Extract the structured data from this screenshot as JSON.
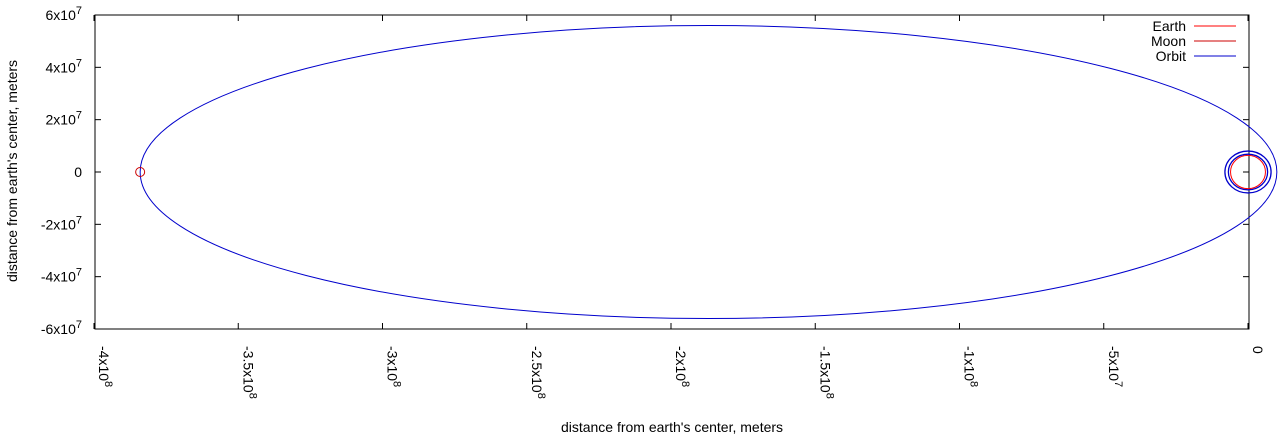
{
  "chart_data": {
    "type": "line",
    "title": "",
    "xlabel": "distance from earth's center, meters",
    "ylabel": "distance from earth's center, meters",
    "xlim": [
      -400000000,
      0
    ],
    "ylim": [
      -60000000,
      60000000
    ],
    "grid": false,
    "legend_position": "top-right",
    "xticks": [
      {
        "value": -400000000,
        "mant": "-4x10",
        "exp": "8"
      },
      {
        "value": -350000000,
        "mant": "-3.5x10",
        "exp": "8"
      },
      {
        "value": -300000000,
        "mant": "-3x10",
        "exp": "8"
      },
      {
        "value": -250000000,
        "mant": "-2.5x10",
        "exp": "8"
      },
      {
        "value": -200000000,
        "mant": "-2x10",
        "exp": "8"
      },
      {
        "value": -150000000,
        "mant": "-1.5x10",
        "exp": "8"
      },
      {
        "value": -100000000,
        "mant": "-1x10",
        "exp": "8"
      },
      {
        "value": -50000000,
        "mant": "-5x10",
        "exp": "7"
      },
      {
        "value": 0,
        "mant": "0",
        "exp": ""
      }
    ],
    "yticks": [
      {
        "value": 60000000,
        "mant": "6x10",
        "exp": "7"
      },
      {
        "value": 40000000,
        "mant": "4x10",
        "exp": "7"
      },
      {
        "value": 20000000,
        "mant": "2x10",
        "exp": "7"
      },
      {
        "value": 0,
        "mant": "0",
        "exp": ""
      },
      {
        "value": -20000000,
        "mant": "-2x10",
        "exp": "7"
      },
      {
        "value": -40000000,
        "mant": "-4x10",
        "exp": "7"
      },
      {
        "value": -60000000,
        "mant": "-6x10",
        "exp": "7"
      }
    ],
    "series": [
      {
        "name": "Earth",
        "color": "#ff0000",
        "shape": "circle",
        "center": [
          0,
          0
        ],
        "radius": 6371000
      },
      {
        "name": "Moon",
        "color": "#cc0000",
        "shape": "circle",
        "center": [
          -384000000,
          0
        ],
        "radius": 1737000
      },
      {
        "name": "Orbit",
        "color": "#0000cc",
        "shape": "ellipse_and_loop",
        "ellipse": {
          "center": [
            -187000000,
            0
          ],
          "semi_x": 197000000,
          "semi_y": 56000000
        },
        "loops": [
          {
            "center": [
              0,
              0
            ],
            "radius": 8000000
          },
          {
            "center": [
              0,
              0
            ],
            "radius": 6800000
          }
        ]
      }
    ]
  }
}
